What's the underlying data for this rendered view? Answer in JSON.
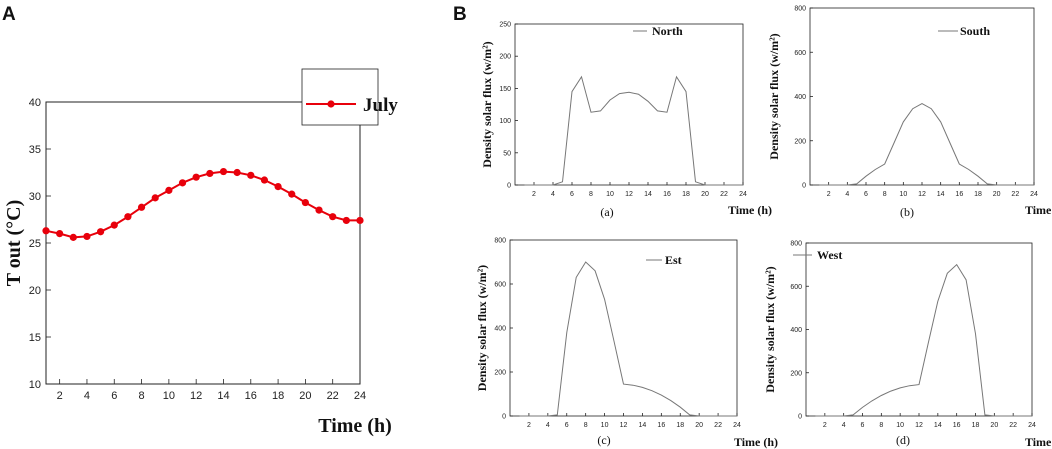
{
  "panels": {
    "a_letter": "A",
    "b_letter": "B"
  },
  "chart_data": [
    {
      "type": "line",
      "panel": "A",
      "x": [
        1,
        2,
        3,
        4,
        5,
        6,
        7,
        8,
        9,
        10,
        11,
        12,
        13,
        14,
        15,
        16,
        17,
        18,
        19,
        20,
        21,
        22,
        23,
        24
      ],
      "series": [
        {
          "name": "July",
          "color": "#e8000b",
          "values": [
            26.3,
            26.0,
            25.6,
            25.7,
            26.2,
            26.9,
            27.8,
            28.8,
            29.8,
            30.6,
            31.4,
            32.0,
            32.4,
            32.6,
            32.5,
            32.2,
            31.7,
            31.0,
            30.2,
            29.3,
            28.5,
            27.8,
            27.4,
            27.4
          ]
        }
      ],
      "xlabel": "Time (h)",
      "ylabel": "T out (°C)",
      "xlim": [
        1,
        24
      ],
      "ylim": [
        10,
        40
      ],
      "xticks": [
        2,
        4,
        6,
        8,
        10,
        12,
        14,
        16,
        18,
        20,
        22,
        24
      ],
      "yticks": [
        10,
        15,
        20,
        25,
        30,
        35,
        40
      ],
      "legend": "July"
    },
    {
      "type": "line",
      "panel": "a",
      "caption": "(a)",
      "legend": "North",
      "x": [
        1,
        2,
        3,
        4,
        5,
        6,
        7,
        8,
        9,
        10,
        11,
        12,
        13,
        14,
        15,
        16,
        17,
        18,
        19,
        20,
        21,
        22,
        23,
        24
      ],
      "series": [
        {
          "name": "North",
          "color": "#777777",
          "values": [
            0,
            0,
            0,
            0,
            5,
            145,
            168,
            113,
            115,
            132,
            142,
            144,
            141,
            130,
            115,
            113,
            168,
            145,
            5,
            0,
            0,
            0,
            0,
            0
          ]
        }
      ],
      "xlabel": "Time (h)",
      "ylabel": "Density solar flux (w/m²)",
      "xlim": [
        0,
        24
      ],
      "ylim": [
        0,
        250
      ],
      "xticks": [
        2,
        4,
        6,
        8,
        10,
        12,
        14,
        16,
        18,
        20,
        22,
        24
      ],
      "yticks": [
        0,
        50,
        100,
        150,
        200,
        250
      ]
    },
    {
      "type": "line",
      "panel": "b",
      "caption": "(b)",
      "legend": "South",
      "x": [
        1,
        2,
        3,
        4,
        5,
        6,
        7,
        8,
        9,
        10,
        11,
        12,
        13,
        14,
        15,
        16,
        17,
        18,
        19,
        20,
        21,
        22,
        23,
        24
      ],
      "series": [
        {
          "name": "South",
          "color": "#777777",
          "values": [
            0,
            0,
            0,
            0,
            5,
            40,
            70,
            95,
            190,
            285,
            345,
            368,
            345,
            285,
            190,
            95,
            70,
            40,
            5,
            0,
            0,
            0,
            0,
            0
          ]
        }
      ],
      "xlabel": "Time (h)",
      "ylabel": "Density solar flux (w/m²)",
      "xlim": [
        0,
        24
      ],
      "ylim": [
        0,
        800
      ],
      "xticks": [
        2,
        4,
        6,
        8,
        10,
        12,
        14,
        16,
        18,
        20,
        22,
        24
      ],
      "yticks": [
        0,
        200,
        400,
        600,
        800
      ]
    },
    {
      "type": "line",
      "panel": "c",
      "caption": "(c)",
      "legend": "Est",
      "x": [
        1,
        2,
        3,
        4,
        5,
        6,
        7,
        8,
        9,
        10,
        11,
        12,
        13,
        14,
        15,
        16,
        17,
        18,
        19,
        20,
        21,
        22,
        23,
        24
      ],
      "series": [
        {
          "name": "Est",
          "color": "#777777",
          "values": [
            0,
            0,
            0,
            0,
            5,
            380,
            630,
            700,
            660,
            530,
            340,
            145,
            140,
            130,
            115,
            95,
            70,
            40,
            5,
            0,
            0,
            0,
            0,
            0
          ]
        }
      ],
      "xlabel": "Time (h)",
      "ylabel": "Density solar flux (w/m²)",
      "xlim": [
        0,
        24
      ],
      "ylim": [
        0,
        800
      ],
      "xticks": [
        2,
        4,
        6,
        8,
        10,
        12,
        14,
        16,
        18,
        20,
        22,
        24
      ],
      "yticks": [
        0,
        200,
        400,
        600,
        800
      ]
    },
    {
      "type": "line",
      "panel": "d",
      "caption": "(d)",
      "legend": "West",
      "x": [
        1,
        2,
        3,
        4,
        5,
        6,
        7,
        8,
        9,
        10,
        11,
        12,
        13,
        14,
        15,
        16,
        17,
        18,
        19,
        20,
        21,
        22,
        23,
        24
      ],
      "series": [
        {
          "name": "West",
          "color": "#777777",
          "values": [
            0,
            0,
            0,
            0,
            5,
            40,
            70,
            95,
            115,
            130,
            140,
            145,
            340,
            530,
            660,
            700,
            630,
            380,
            5,
            0,
            0,
            0,
            0,
            0
          ]
        }
      ],
      "xlabel": "Time (h)",
      "ylabel": "Density solar flux (w/m²)",
      "xlim": [
        0,
        24
      ],
      "ylim": [
        0,
        800
      ],
      "xticks": [
        2,
        4,
        6,
        8,
        10,
        12,
        14,
        16,
        18,
        20,
        22,
        24
      ],
      "yticks": [
        0,
        200,
        400,
        600,
        800
      ]
    }
  ]
}
